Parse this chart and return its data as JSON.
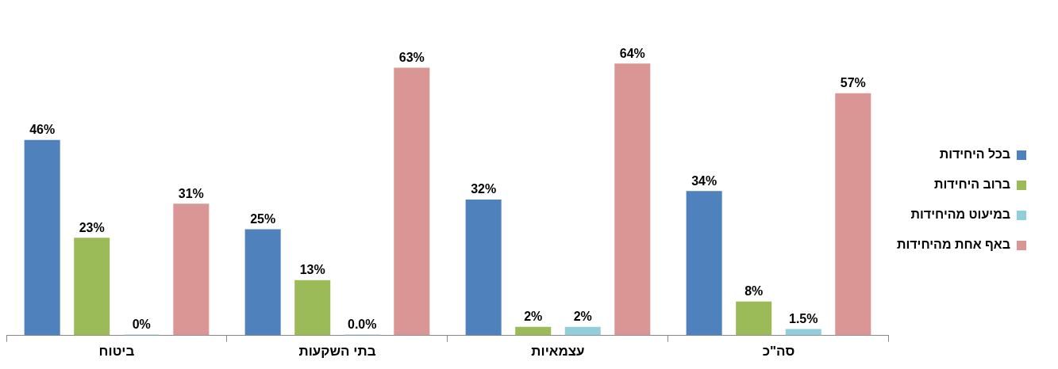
{
  "chart_data": {
    "type": "bar",
    "categories": [
      "ביטוח",
      "בתי השקעות",
      "עצמאיות",
      "סה\"כ"
    ],
    "series": [
      {
        "name": "בכל היחידות",
        "color": "#4f81bd",
        "values": [
          46,
          25,
          32,
          34
        ],
        "value_labels": [
          "46%",
          "25%",
          "32%",
          "34%"
        ]
      },
      {
        "name": "ברוב היחידות",
        "color": "#9bbb59",
        "values": [
          23,
          13,
          2,
          8
        ],
        "value_labels": [
          "23%",
          "13%",
          "2%",
          "8%"
        ]
      },
      {
        "name": "במיעוט מהיחידות",
        "color": "#92cddc",
        "values": [
          0,
          0,
          2,
          1.5
        ],
        "value_labels": [
          "0%",
          "0.0%",
          "2%",
          "1.5%"
        ]
      },
      {
        "name": "באף אחת מהיחידות",
        "color": "#d99694",
        "values": [
          31,
          63,
          64,
          57
        ],
        "value_labels": [
          "31%",
          "63%",
          "64%",
          "57%"
        ]
      }
    ],
    "legend": "right"
  }
}
